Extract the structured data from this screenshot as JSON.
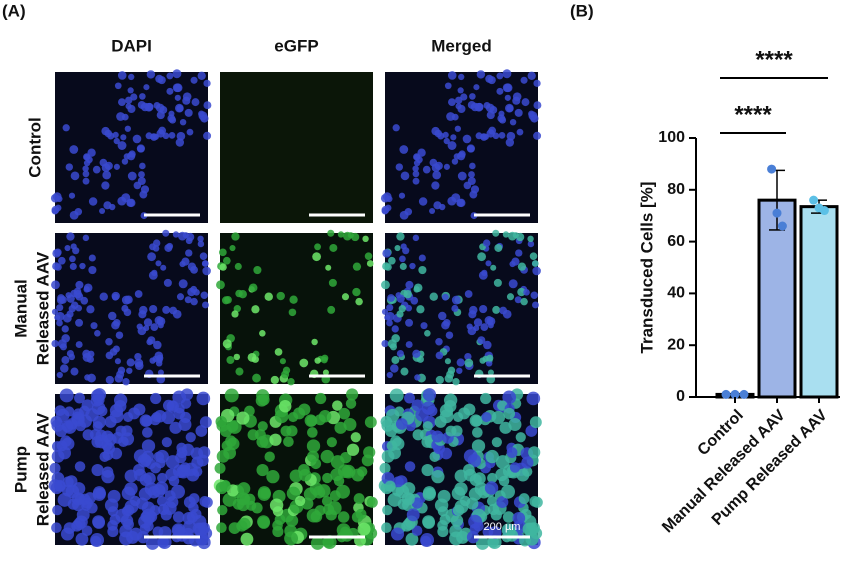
{
  "panel_a": {
    "label": "(A)",
    "columns": [
      "DAPI",
      "eGFP",
      "Merged"
    ],
    "rows": [
      [
        "Control"
      ],
      [
        "Manual",
        "Released AAV"
      ],
      [
        "Pump",
        "Released AAV"
      ]
    ],
    "scale_bar": "200 µm"
  },
  "panel_b": {
    "label": "(B)"
  },
  "chart_data": {
    "type": "bar",
    "ylabel": "Transduced Cells [%]",
    "categories": [
      "Control",
      "Manual Released AAV",
      "Pump Released AAV"
    ],
    "values": [
      1,
      76,
      73.5
    ],
    "errors": [
      0,
      11.5,
      2.5
    ],
    "points": [
      [
        1,
        1,
        1
      ],
      [
        88,
        71,
        66
      ],
      [
        76,
        73,
        72
      ]
    ],
    "colors": [
      "#9db4e6",
      "#9db4e6",
      "#a9dff0"
    ],
    "point_colors": [
      "#4a7fd6",
      "#4a7fd6",
      "#5cc0e6"
    ],
    "ylim": [
      0,
      100
    ],
    "yticks": [
      0,
      20,
      40,
      60,
      80,
      100
    ],
    "significance": [
      {
        "label": "****",
        "between": [
          "Control",
          "Manual Released AAV"
        ]
      },
      {
        "label": "****",
        "between": [
          "Control",
          "Pump Released AAV"
        ]
      }
    ]
  }
}
